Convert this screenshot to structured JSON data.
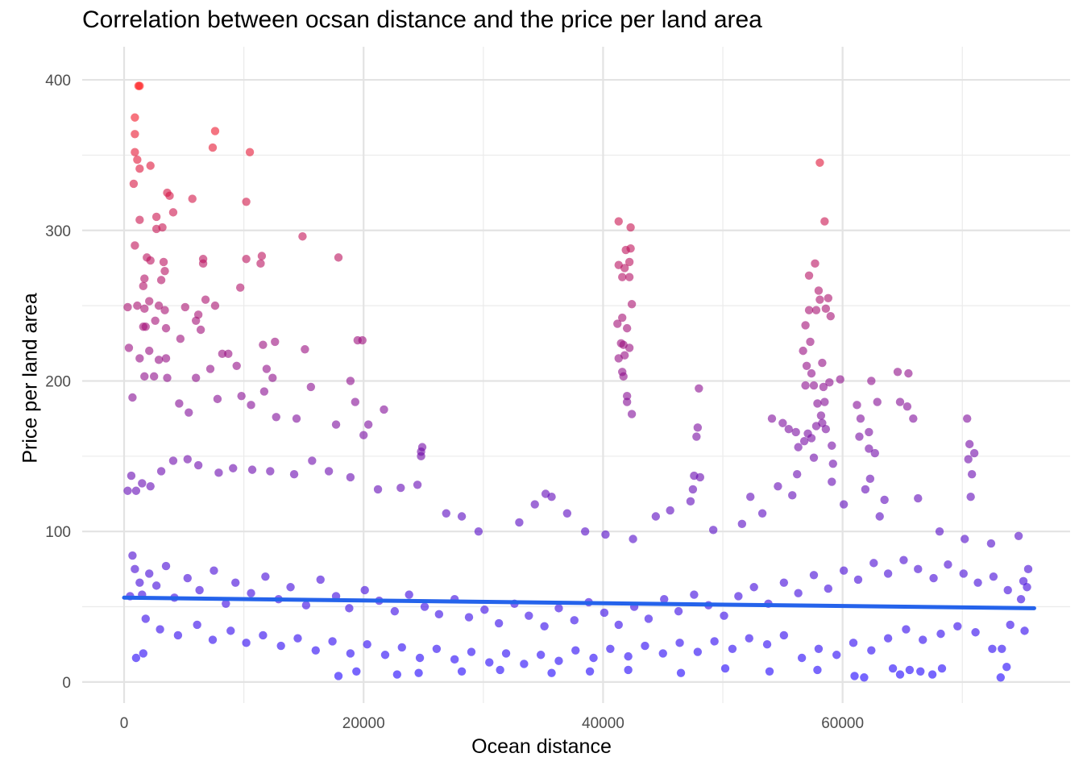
{
  "chart_data": {
    "type": "scatter",
    "title": "Correlation between ocsan distance and the price per land area",
    "xlabel": "Ocean distance",
    "ylabel": "Price per land area",
    "xlim": [
      -3500,
      79000
    ],
    "ylim": [
      -14,
      422
    ],
    "x_major_ticks": [
      0,
      20000,
      40000,
      60000
    ],
    "x_minor_ticks": [
      10000,
      30000,
      50000,
      70000
    ],
    "y_major_ticks": [
      0,
      100,
      200,
      300,
      400
    ],
    "y_minor_ticks": [
      50,
      150,
      250,
      350
    ],
    "x_tick_labels": [
      "0",
      "20000",
      "40000",
      "60000"
    ],
    "y_tick_labels": [
      "0",
      "100",
      "200",
      "300",
      "400"
    ],
    "grid": true,
    "color_scale": {
      "low": "#1a00ff",
      "high": "#ff1a1a",
      "domain": [
        0,
        400
      ]
    },
    "point_alpha": 0.6,
    "trend_line": {
      "x": [
        0,
        76000
      ],
      "y": [
        56,
        49
      ],
      "color": "#2563eb"
    },
    "points": [
      [
        1200,
        396
      ],
      [
        1300,
        396
      ],
      [
        900,
        375
      ],
      [
        900,
        364
      ],
      [
        900,
        352
      ],
      [
        1100,
        347
      ],
      [
        1300,
        341
      ],
      [
        2200,
        343
      ],
      [
        800,
        331
      ],
      [
        1300,
        307
      ],
      [
        900,
        290
      ],
      [
        2700,
        309
      ],
      [
        2700,
        301
      ],
      [
        3200,
        302
      ],
      [
        3600,
        325
      ],
      [
        3800,
        323
      ],
      [
        4100,
        312
      ],
      [
        3300,
        279
      ],
      [
        3400,
        273
      ],
      [
        3100,
        267
      ],
      [
        1900,
        282
      ],
      [
        2200,
        280
      ],
      [
        1700,
        268
      ],
      [
        1600,
        263
      ],
      [
        5700,
        321
      ],
      [
        7400,
        355
      ],
      [
        7600,
        366
      ],
      [
        10500,
        352
      ],
      [
        10200,
        319
      ],
      [
        10200,
        281
      ],
      [
        11500,
        283
      ],
      [
        11400,
        278
      ],
      [
        14900,
        296
      ],
      [
        17900,
        282
      ],
      [
        6600,
        281
      ],
      [
        6600,
        278
      ],
      [
        6800,
        254
      ],
      [
        7600,
        250
      ],
      [
        9700,
        262
      ],
      [
        300,
        249
      ],
      [
        1100,
        250
      ],
      [
        1700,
        248
      ],
      [
        2100,
        253
      ],
      [
        2900,
        250
      ],
      [
        3400,
        247
      ],
      [
        5100,
        249
      ],
      [
        6200,
        244
      ],
      [
        6000,
        240
      ],
      [
        1600,
        236
      ],
      [
        1800,
        236
      ],
      [
        2600,
        240
      ],
      [
        3500,
        235
      ],
      [
        4700,
        228
      ],
      [
        6400,
        234
      ],
      [
        400,
        222
      ],
      [
        1300,
        215
      ],
      [
        2100,
        220
      ],
      [
        2900,
        214
      ],
      [
        3500,
        215
      ],
      [
        7200,
        208
      ],
      [
        8200,
        218
      ],
      [
        9400,
        210
      ],
      [
        8700,
        218
      ],
      [
        11600,
        224
      ],
      [
        12600,
        226
      ],
      [
        15100,
        221
      ],
      [
        19500,
        227
      ],
      [
        19900,
        227
      ],
      [
        11900,
        208
      ],
      [
        12400,
        202
      ],
      [
        15600,
        196
      ],
      [
        18900,
        200
      ],
      [
        19300,
        186
      ],
      [
        20400,
        171
      ],
      [
        21700,
        181
      ],
      [
        1700,
        203
      ],
      [
        2500,
        203
      ],
      [
        3600,
        202
      ],
      [
        700,
        189
      ],
      [
        4600,
        185
      ],
      [
        5400,
        179
      ],
      [
        6000,
        202
      ],
      [
        7800,
        188
      ],
      [
        9800,
        190
      ],
      [
        10600,
        184
      ],
      [
        11700,
        193
      ],
      [
        12700,
        176
      ],
      [
        14400,
        175
      ],
      [
        17700,
        171
      ],
      [
        20000,
        164
      ],
      [
        24900,
        156
      ],
      [
        24800,
        153
      ],
      [
        24800,
        150
      ],
      [
        41300,
        306
      ],
      [
        42300,
        302
      ],
      [
        41900,
        287
      ],
      [
        42300,
        288
      ],
      [
        41300,
        277
      ],
      [
        41800,
        275
      ],
      [
        42200,
        279
      ],
      [
        42200,
        269
      ],
      [
        41600,
        269
      ],
      [
        42400,
        251
      ],
      [
        41200,
        238
      ],
      [
        41600,
        242
      ],
      [
        42000,
        235
      ],
      [
        41500,
        225
      ],
      [
        41700,
        224
      ],
      [
        42200,
        222
      ],
      [
        41300,
        215
      ],
      [
        41800,
        217
      ],
      [
        41600,
        206
      ],
      [
        41700,
        203
      ],
      [
        42000,
        190
      ],
      [
        42000,
        186
      ],
      [
        42400,
        178
      ],
      [
        58100,
        345
      ],
      [
        58500,
        306
      ],
      [
        57700,
        278
      ],
      [
        57200,
        270
      ],
      [
        58000,
        260
      ],
      [
        58100,
        254
      ],
      [
        57200,
        247
      ],
      [
        57800,
        247
      ],
      [
        58800,
        255
      ],
      [
        59000,
        243
      ],
      [
        58600,
        248
      ],
      [
        56900,
        237
      ],
      [
        56700,
        220
      ],
      [
        57300,
        226
      ],
      [
        58300,
        212
      ],
      [
        57000,
        210
      ],
      [
        57400,
        205
      ],
      [
        56900,
        197
      ],
      [
        57600,
        197
      ],
      [
        58400,
        196
      ],
      [
        58900,
        199
      ],
      [
        59800,
        201
      ],
      [
        57900,
        185
      ],
      [
        58500,
        186
      ],
      [
        58200,
        177
      ],
      [
        57800,
        170
      ],
      [
        58300,
        172
      ],
      [
        57100,
        165
      ],
      [
        56800,
        160
      ],
      [
        57400,
        162
      ],
      [
        58600,
        168
      ],
      [
        59100,
        157
      ],
      [
        55000,
        172
      ],
      [
        55500,
        168
      ],
      [
        54100,
        175
      ],
      [
        56100,
        166
      ],
      [
        56300,
        156
      ],
      [
        57600,
        149
      ],
      [
        59200,
        145
      ],
      [
        61200,
        184
      ],
      [
        61500,
        175
      ],
      [
        62400,
        200
      ],
      [
        62900,
        186
      ],
      [
        64600,
        206
      ],
      [
        65500,
        205
      ],
      [
        64800,
        186
      ],
      [
        65400,
        183
      ],
      [
        65900,
        175
      ],
      [
        61400,
        163
      ],
      [
        62200,
        166
      ],
      [
        62200,
        155
      ],
      [
        62700,
        152
      ],
      [
        59100,
        133
      ],
      [
        61900,
        128
      ],
      [
        62300,
        135
      ],
      [
        63500,
        121
      ],
      [
        70400,
        175
      ],
      [
        70600,
        158
      ],
      [
        70500,
        148
      ],
      [
        71000,
        152
      ],
      [
        70800,
        138
      ],
      [
        70700,
        123
      ],
      [
        48000,
        195
      ],
      [
        47900,
        169
      ],
      [
        47800,
        163
      ],
      [
        47600,
        137
      ],
      [
        48100,
        136
      ],
      [
        47500,
        128
      ],
      [
        52300,
        123
      ],
      [
        54600,
        130
      ],
      [
        55800,
        124
      ],
      [
        56200,
        138
      ],
      [
        300,
        127
      ],
      [
        600,
        137
      ],
      [
        1000,
        127
      ],
      [
        1500,
        132
      ],
      [
        2200,
        130
      ],
      [
        3100,
        140
      ],
      [
        4100,
        147
      ],
      [
        5300,
        148
      ],
      [
        6200,
        144
      ],
      [
        7900,
        139
      ],
      [
        9100,
        142
      ],
      [
        10700,
        141
      ],
      [
        12200,
        140
      ],
      [
        14200,
        138
      ],
      [
        15700,
        147
      ],
      [
        17100,
        140
      ],
      [
        18900,
        136
      ],
      [
        21200,
        128
      ],
      [
        23100,
        129
      ],
      [
        24500,
        131
      ],
      [
        26900,
        112
      ],
      [
        28200,
        110
      ],
      [
        29600,
        100
      ],
      [
        33000,
        106
      ],
      [
        34300,
        118
      ],
      [
        35200,
        125
      ],
      [
        35700,
        123
      ],
      [
        37000,
        112
      ],
      [
        38500,
        100
      ],
      [
        40200,
        98
      ],
      [
        42500,
        95
      ],
      [
        44400,
        110
      ],
      [
        45600,
        114
      ],
      [
        47300,
        120
      ],
      [
        49200,
        101
      ],
      [
        51600,
        105
      ],
      [
        53300,
        112
      ],
      [
        60100,
        118
      ],
      [
        63100,
        110
      ],
      [
        66300,
        122
      ],
      [
        68100,
        100
      ],
      [
        70200,
        95
      ],
      [
        72400,
        92
      ],
      [
        74700,
        97
      ],
      [
        75500,
        75
      ],
      [
        75400,
        63
      ],
      [
        74900,
        55
      ],
      [
        500,
        57
      ],
      [
        700,
        84
      ],
      [
        900,
        75
      ],
      [
        1300,
        66
      ],
      [
        1500,
        58
      ],
      [
        2100,
        72
      ],
      [
        2700,
        64
      ],
      [
        3500,
        77
      ],
      [
        4200,
        56
      ],
      [
        5300,
        69
      ],
      [
        6300,
        61
      ],
      [
        7500,
        74
      ],
      [
        8500,
        52
      ],
      [
        9300,
        66
      ],
      [
        10600,
        59
      ],
      [
        11800,
        70
      ],
      [
        12900,
        55
      ],
      [
        13900,
        63
      ],
      [
        15200,
        51
      ],
      [
        16400,
        68
      ],
      [
        17700,
        57
      ],
      [
        18800,
        49
      ],
      [
        20100,
        61
      ],
      [
        21300,
        54
      ],
      [
        22600,
        47
      ],
      [
        23800,
        58
      ],
      [
        25100,
        50
      ],
      [
        26300,
        45
      ],
      [
        27600,
        55
      ],
      [
        28800,
        43
      ],
      [
        30100,
        48
      ],
      [
        31300,
        39
      ],
      [
        32600,
        52
      ],
      [
        33800,
        44
      ],
      [
        35100,
        37
      ],
      [
        36300,
        49
      ],
      [
        37600,
        41
      ],
      [
        38800,
        53
      ],
      [
        40100,
        46
      ],
      [
        41300,
        38
      ],
      [
        42600,
        50
      ],
      [
        43800,
        42
      ],
      [
        45100,
        55
      ],
      [
        46300,
        47
      ],
      [
        47600,
        58
      ],
      [
        48800,
        51
      ],
      [
        50100,
        44
      ],
      [
        51300,
        57
      ],
      [
        52600,
        63
      ],
      [
        53800,
        52
      ],
      [
        55100,
        66
      ],
      [
        56300,
        59
      ],
      [
        57600,
        71
      ],
      [
        58800,
        62
      ],
      [
        60100,
        74
      ],
      [
        61300,
        68
      ],
      [
        62600,
        79
      ],
      [
        63800,
        72
      ],
      [
        65100,
        81
      ],
      [
        66300,
        75
      ],
      [
        67600,
        69
      ],
      [
        68800,
        78
      ],
      [
        70100,
        72
      ],
      [
        71300,
        66
      ],
      [
        72600,
        70
      ],
      [
        73800,
        61
      ],
      [
        75100,
        67
      ],
      [
        1800,
        42
      ],
      [
        3000,
        35
      ],
      [
        4500,
        31
      ],
      [
        6100,
        38
      ],
      [
        7400,
        28
      ],
      [
        8900,
        34
      ],
      [
        10200,
        26
      ],
      [
        11600,
        31
      ],
      [
        13100,
        24
      ],
      [
        14500,
        29
      ],
      [
        16000,
        21
      ],
      [
        17400,
        27
      ],
      [
        18900,
        19
      ],
      [
        20300,
        25
      ],
      [
        21800,
        18
      ],
      [
        23200,
        23
      ],
      [
        24700,
        16
      ],
      [
        26100,
        22
      ],
      [
        27600,
        15
      ],
      [
        29000,
        20
      ],
      [
        30500,
        13
      ],
      [
        31900,
        19
      ],
      [
        33400,
        12
      ],
      [
        34800,
        18
      ],
      [
        36300,
        14
      ],
      [
        37700,
        21
      ],
      [
        39200,
        16
      ],
      [
        40600,
        22
      ],
      [
        42100,
        17
      ],
      [
        43500,
        24
      ],
      [
        45000,
        19
      ],
      [
        46400,
        26
      ],
      [
        47900,
        20
      ],
      [
        49300,
        27
      ],
      [
        50800,
        22
      ],
      [
        52200,
        29
      ],
      [
        53700,
        25
      ],
      [
        55100,
        31
      ],
      [
        56600,
        16
      ],
      [
        58000,
        22
      ],
      [
        59500,
        18
      ],
      [
        60900,
        26
      ],
      [
        62400,
        21
      ],
      [
        63800,
        29
      ],
      [
        65300,
        35
      ],
      [
        66700,
        28
      ],
      [
        68200,
        32
      ],
      [
        69600,
        37
      ],
      [
        71100,
        33
      ],
      [
        72500,
        22
      ],
      [
        74000,
        38
      ],
      [
        75200,
        34
      ],
      [
        1000,
        16
      ],
      [
        1600,
        19
      ],
      [
        17900,
        4
      ],
      [
        19400,
        7
      ],
      [
        22800,
        5
      ],
      [
        24600,
        6
      ],
      [
        28200,
        7
      ],
      [
        31400,
        8
      ],
      [
        35700,
        6
      ],
      [
        38900,
        7
      ],
      [
        42100,
        8
      ],
      [
        46500,
        6
      ],
      [
        50200,
        9
      ],
      [
        53900,
        7
      ],
      [
        57900,
        8
      ],
      [
        61000,
        4
      ],
      [
        61800,
        3
      ],
      [
        64200,
        9
      ],
      [
        64800,
        5
      ],
      [
        67500,
        5
      ],
      [
        68300,
        9
      ],
      [
        73200,
        3
      ],
      [
        73700,
        10
      ],
      [
        73300,
        22
      ],
      [
        65600,
        8
      ],
      [
        66500,
        7
      ]
    ]
  }
}
